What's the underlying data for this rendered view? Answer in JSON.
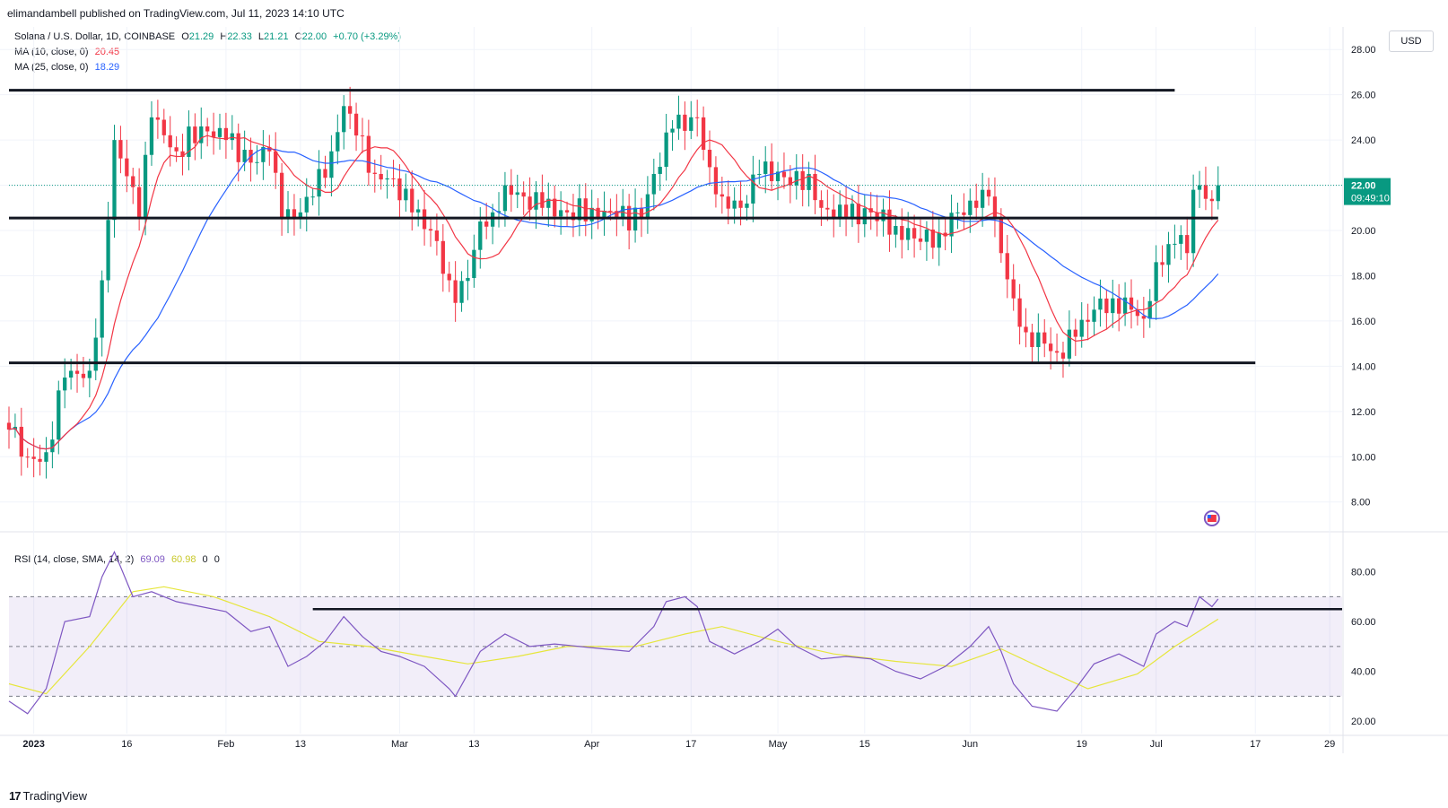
{
  "header": {
    "published_text": "elimandambell published on TradingView.com, Jul 11, 2023 14:10 UTC"
  },
  "symbol": {
    "title": "Solana / U.S. Dollar, 1D, COINBASE",
    "open_label": "O",
    "open": "21.29",
    "high_label": "H",
    "high": "22.33",
    "low_label": "L",
    "low": "21.21",
    "close_label": "C",
    "close": "22.00",
    "change": "+0.70 (+3.29%)"
  },
  "indicators": {
    "ma10": {
      "label": "MA (10, close, 0)",
      "value": "20.45",
      "color": "#f23645"
    },
    "ma25": {
      "label": "MA (25, close, 0)",
      "value": "18.29",
      "color": "#2962ff"
    },
    "rsi": {
      "label": "RSI (14, close, SMA, 14, 2)",
      "value": "69.09",
      "sma_value": "60.98",
      "extra1": "0",
      "extra2": "0",
      "color": "#7e57c2",
      "sma_color": "#e6e63c"
    }
  },
  "price_axis": {
    "currency": "USD",
    "last_price": "22.00",
    "countdown": "09:49:10"
  },
  "colors": {
    "up": "#089981",
    "down": "#f23645",
    "support_line": "#131722",
    "rsi_band": "#7e57c2"
  },
  "branding": {
    "logo_text": "TradingView"
  },
  "chart_data": [
    {
      "type": "candlestick",
      "title": "Solana / U.S. Dollar, 1D, COINBASE",
      "x_tick_labels": [
        "2023",
        "16",
        "Feb",
        "13",
        "Mar",
        "13",
        "Apr",
        "17",
        "May",
        "15",
        "Jun",
        "19",
        "Jul",
        "17",
        "29"
      ],
      "y_tick_labels": [
        "28.00",
        "26.00",
        "24.00",
        "22.00",
        "20.00",
        "18.00",
        "16.00",
        "14.00",
        "12.00",
        "10.00",
        "8.00"
      ],
      "ylim": [
        6.8,
        29.0
      ],
      "x_range": [
        "2022-12-28",
        "2023-07-31"
      ],
      "last_close": 22.0,
      "horizontal_lines": [
        {
          "from": "2022-12-28",
          "to": "2023-07-04",
          "y": 26.2
        },
        {
          "from": "2022-12-28",
          "to": "2023-07-11",
          "y": 20.55
        },
        {
          "from": "2022-12-28",
          "to": "2023-07-17",
          "y": 14.15
        }
      ],
      "ohlc_anchor_closes": [
        [
          "2022-12-28",
          11.2
        ],
        [
          "2022-12-31",
          10.0
        ],
        [
          "2023-01-01",
          9.9
        ],
        [
          "2023-01-03",
          10.2
        ],
        [
          "2023-01-06",
          13.5
        ],
        [
          "2023-01-10",
          13.8
        ],
        [
          "2023-01-12",
          17.8
        ],
        [
          "2023-01-14",
          24.0
        ],
        [
          "2023-01-16",
          22.4
        ],
        [
          "2023-01-18",
          20.6
        ],
        [
          "2023-01-20",
          25.0
        ],
        [
          "2023-01-24",
          23.5
        ],
        [
          "2023-01-28",
          24.6
        ],
        [
          "2023-02-01",
          24.0
        ],
        [
          "2023-02-05",
          23.0
        ],
        [
          "2023-02-08",
          23.5
        ],
        [
          "2023-02-10",
          20.5
        ],
        [
          "2023-02-13",
          20.8
        ],
        [
          "2023-02-15",
          21.5
        ],
        [
          "2023-02-18",
          23.5
        ],
        [
          "2023-02-20",
          25.5
        ],
        [
          "2023-02-22",
          24.2
        ],
        [
          "2023-02-25",
          22.5
        ],
        [
          "2023-02-28",
          22.3
        ],
        [
          "2023-03-03",
          20.8
        ],
        [
          "2023-03-06",
          20.0
        ],
        [
          "2023-03-09",
          17.8
        ],
        [
          "2023-03-10",
          16.8
        ],
        [
          "2023-03-12",
          17.9
        ],
        [
          "2023-03-14",
          20.4
        ],
        [
          "2023-03-16",
          20.8
        ],
        [
          "2023-03-18",
          22.0
        ],
        [
          "2023-03-21",
          21.5
        ],
        [
          "2023-03-24",
          21.0
        ],
        [
          "2023-03-28",
          20.8
        ],
        [
          "2023-04-01",
          21.0
        ],
        [
          "2023-04-05",
          20.6
        ],
        [
          "2023-04-09",
          20.5
        ],
        [
          "2023-04-11",
          22.5
        ],
        [
          "2023-04-14",
          24.5
        ],
        [
          "2023-04-18",
          25.0
        ],
        [
          "2023-04-20",
          22.8
        ],
        [
          "2023-04-22",
          21.5
        ],
        [
          "2023-04-25",
          21.0
        ],
        [
          "2023-04-28",
          22.5
        ],
        [
          "2023-05-01",
          22.6
        ],
        [
          "2023-05-03",
          22.0
        ],
        [
          "2023-05-06",
          22.5
        ],
        [
          "2023-05-08",
          21.0
        ],
        [
          "2023-05-12",
          20.6
        ],
        [
          "2023-05-16",
          20.8
        ],
        [
          "2023-05-20",
          20.2
        ],
        [
          "2023-05-24",
          19.5
        ],
        [
          "2023-05-27",
          19.9
        ],
        [
          "2023-05-30",
          20.8
        ],
        [
          "2023-06-02",
          21.0
        ],
        [
          "2023-06-04",
          21.5
        ],
        [
          "2023-06-06",
          19.0
        ],
        [
          "2023-06-08",
          17.0
        ],
        [
          "2023-06-10",
          15.5
        ],
        [
          "2023-06-13",
          15.0
        ],
        [
          "2023-06-15",
          14.6
        ],
        [
          "2023-06-18",
          15.3
        ],
        [
          "2023-06-21",
          16.5
        ],
        [
          "2023-06-24",
          17.0
        ],
        [
          "2023-06-27",
          16.5
        ],
        [
          "2023-06-29",
          16.1
        ],
        [
          "2023-07-01",
          18.6
        ],
        [
          "2023-07-03",
          19.4
        ],
        [
          "2023-07-05",
          19.8
        ],
        [
          "2023-07-06",
          19.0
        ],
        [
          "2023-07-07",
          21.8
        ],
        [
          "2023-07-08",
          22.0
        ],
        [
          "2023-07-09",
          21.4
        ],
        [
          "2023-07-10",
          21.3
        ],
        [
          "2023-07-11",
          22.0
        ]
      ],
      "series": [
        {
          "name": "MA (10, close, 0)",
          "last_value": 20.45
        },
        {
          "name": "MA (25, close, 0)",
          "last_value": 18.29
        }
      ]
    },
    {
      "type": "line",
      "title": "RSI (14, close, SMA, 14, 2)",
      "y_tick_labels": [
        "80.00",
        "60.00",
        "40.00",
        "20.00"
      ],
      "ylim": [
        15,
        95
      ],
      "bands": {
        "upper": 70,
        "middle": 50,
        "lower": 30
      },
      "horizontal_lines": [
        {
          "from": "2023-02-15",
          "to": "2023-07-31",
          "y": 65.0
        }
      ],
      "series": [
        {
          "name": "RSI",
          "values": [
            [
              "2022-12-28",
              28
            ],
            [
              "2022-12-31",
              23
            ],
            [
              "2023-01-03",
              33
            ],
            [
              "2023-01-06",
              60
            ],
            [
              "2023-01-10",
              62
            ],
            [
              "2023-01-12",
              78
            ],
            [
              "2023-01-14",
              88
            ],
            [
              "2023-01-17",
              70
            ],
            [
              "2023-01-20",
              72
            ],
            [
              "2023-01-24",
              68
            ],
            [
              "2023-01-28",
              66
            ],
            [
              "2023-02-01",
              64
            ],
            [
              "2023-02-05",
              56
            ],
            [
              "2023-02-08",
              58
            ],
            [
              "2023-02-11",
              42
            ],
            [
              "2023-02-14",
              46
            ],
            [
              "2023-02-17",
              52
            ],
            [
              "2023-02-20",
              62
            ],
            [
              "2023-02-23",
              54
            ],
            [
              "2023-02-26",
              48
            ],
            [
              "2023-03-01",
              46
            ],
            [
              "2023-03-05",
              42
            ],
            [
              "2023-03-09",
              33
            ],
            [
              "2023-03-10",
              30
            ],
            [
              "2023-03-14",
              48
            ],
            [
              "2023-03-18",
              55
            ],
            [
              "2023-03-22",
              50
            ],
            [
              "2023-03-26",
              51
            ],
            [
              "2023-03-30",
              50
            ],
            [
              "2023-04-03",
              49
            ],
            [
              "2023-04-07",
              48
            ],
            [
              "2023-04-11",
              58
            ],
            [
              "2023-04-13",
              68
            ],
            [
              "2023-04-16",
              70
            ],
            [
              "2023-04-18",
              66
            ],
            [
              "2023-04-20",
              52
            ],
            [
              "2023-04-24",
              47
            ],
            [
              "2023-04-28",
              52
            ],
            [
              "2023-05-01",
              57
            ],
            [
              "2023-05-04",
              50
            ],
            [
              "2023-05-08",
              45
            ],
            [
              "2023-05-12",
              46
            ],
            [
              "2023-05-16",
              45
            ],
            [
              "2023-05-20",
              40
            ],
            [
              "2023-05-24",
              37
            ],
            [
              "2023-05-28",
              42
            ],
            [
              "2023-06-01",
              50
            ],
            [
              "2023-06-04",
              58
            ],
            [
              "2023-06-06",
              48
            ],
            [
              "2023-06-08",
              35
            ],
            [
              "2023-06-11",
              26
            ],
            [
              "2023-06-15",
              24
            ],
            [
              "2023-06-18",
              33
            ],
            [
              "2023-06-21",
              43
            ],
            [
              "2023-06-25",
              47
            ],
            [
              "2023-06-29",
              42
            ],
            [
              "2023-07-01",
              55
            ],
            [
              "2023-07-04",
              60
            ],
            [
              "2023-07-06",
              58
            ],
            [
              "2023-07-08",
              70
            ],
            [
              "2023-07-10",
              66
            ],
            [
              "2023-07-11",
              69.09
            ]
          ]
        },
        {
          "name": "SMA",
          "values": [
            [
              "2022-12-28",
              35
            ],
            [
              "2023-01-03",
              31
            ],
            [
              "2023-01-10",
              50
            ],
            [
              "2023-01-17",
              72
            ],
            [
              "2023-01-22",
              74
            ],
            [
              "2023-01-30",
              70
            ],
            [
              "2023-02-08",
              62
            ],
            [
              "2023-02-16",
              52
            ],
            [
              "2023-02-24",
              50
            ],
            [
              "2023-03-05",
              46
            ],
            [
              "2023-03-12",
              43
            ],
            [
              "2023-03-20",
              46
            ],
            [
              "2023-03-28",
              50
            ],
            [
              "2023-04-08",
              50
            ],
            [
              "2023-04-16",
              55
            ],
            [
              "2023-04-22",
              58
            ],
            [
              "2023-05-01",
              52
            ],
            [
              "2023-05-10",
              47
            ],
            [
              "2023-05-20",
              44
            ],
            [
              "2023-05-29",
              42
            ],
            [
              "2023-06-06",
              49
            ],
            [
              "2023-06-12",
              42
            ],
            [
              "2023-06-20",
              33
            ],
            [
              "2023-06-28",
              39
            ],
            [
              "2023-07-04",
              50
            ],
            [
              "2023-07-11",
              60.98
            ]
          ]
        }
      ]
    }
  ]
}
